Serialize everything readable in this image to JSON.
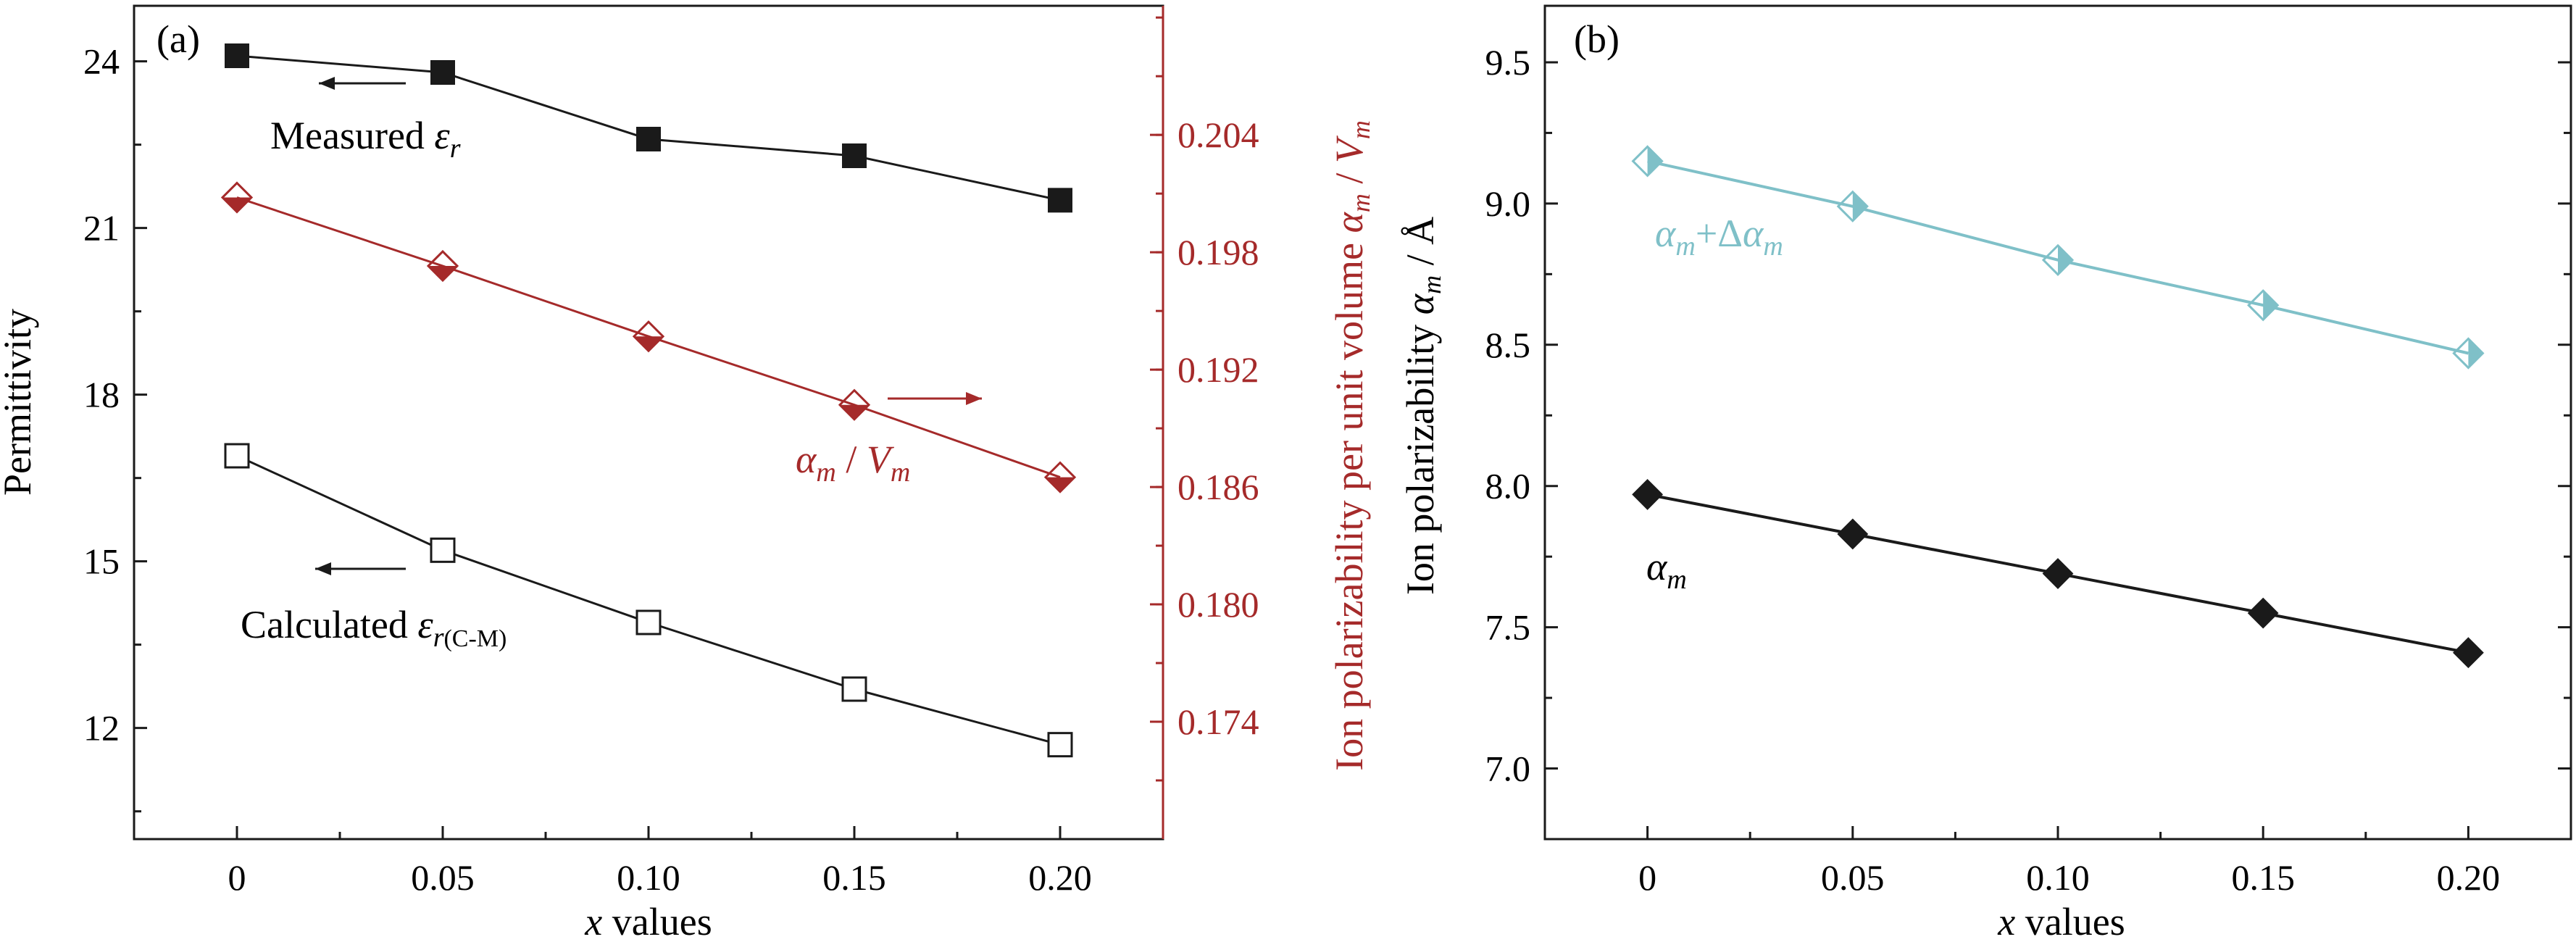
{
  "colors": {
    "black": "#1a1a1a",
    "red": "#a52a2a",
    "cyan": "#7fc0c8"
  },
  "chart_data": [
    {
      "panel": "(a)",
      "type": "line",
      "x": [
        0,
        0.05,
        0.1,
        0.15,
        0.2
      ],
      "x_tick_labels": [
        "0",
        "0.05",
        "0.10",
        "0.15",
        "0.20"
      ],
      "xlabel_italic": "x",
      "xlabel_rest": " values",
      "xlim": [
        -0.025,
        0.225
      ],
      "ylabel_left": "Permittivity",
      "ylim_left": [
        10.0,
        25.0
      ],
      "yticks_left": [
        "12",
        "15",
        "18",
        "21",
        "24"
      ],
      "ylabel_right_text": "Ion polarizability per unit volume ",
      "ylabel_right_a": "α",
      "ylabel_right_a_sub": "m",
      "ylabel_right_sep": " / ",
      "ylabel_right_v": "V",
      "ylabel_right_v_sub": "m",
      "ylim_right": [
        0.168,
        0.2106
      ],
      "yticks_right": [
        "0.174",
        "0.180",
        "0.186",
        "0.192",
        "0.198",
        "0.204"
      ],
      "series": [
        {
          "name": "Measured εr",
          "axis": "left",
          "marker": "filled-square",
          "values": [
            24.1,
            23.8,
            22.6,
            22.3,
            21.5
          ],
          "label_text": "Measured ",
          "label_sym": "ε",
          "label_sub": "r"
        },
        {
          "name": "Calculated εr(C-M)",
          "axis": "left",
          "marker": "open-square",
          "values": [
            16.9,
            15.2,
            13.9,
            12.7,
            11.7
          ],
          "label_text": "Calculated ",
          "label_sym": "ε",
          "label_sub": "r",
          "label_sub2": "(C-M)"
        },
        {
          "name": "αm / Vm",
          "axis": "right",
          "marker": "half-filled-diamond",
          "values": [
            0.2008,
            0.1973,
            0.1937,
            0.1902,
            0.1865
          ],
          "label_a": "α",
          "label_a_sub": "m",
          "label_sep": " / ",
          "label_v": "V",
          "label_v_sub": "m"
        }
      ]
    },
    {
      "panel": "(b)",
      "type": "line",
      "x": [
        0,
        0.05,
        0.1,
        0.15,
        0.2
      ],
      "x_tick_labels": [
        "0",
        "0.05",
        "0.10",
        "0.15",
        "0.20"
      ],
      "xlabel_italic": "x",
      "xlabel_rest": " values",
      "xlim": [
        -0.025,
        0.225
      ],
      "ylabel_text": "Ion polarizability ",
      "ylabel_sym": "α",
      "ylabel_sub": "m",
      "ylabel_unit": " / Å",
      "ylim": [
        6.75,
        9.7
      ],
      "yticks": [
        "7.0",
        "7.5",
        "8.0",
        "8.5",
        "9.0",
        "9.5"
      ],
      "series": [
        {
          "name": "αm+Δαm",
          "marker": "half-filled-diamond",
          "values": [
            9.15,
            8.99,
            8.8,
            8.64,
            8.47
          ],
          "label_a": "α",
          "label_a_sub": "m",
          "label_plus": "+Δ",
          "label_b": "α",
          "label_b_sub": "m"
        },
        {
          "name": "αm",
          "marker": "filled-diamond",
          "values": [
            7.97,
            7.83,
            7.69,
            7.55,
            7.41
          ],
          "label_a": "α",
          "label_a_sub": "m"
        }
      ]
    }
  ]
}
